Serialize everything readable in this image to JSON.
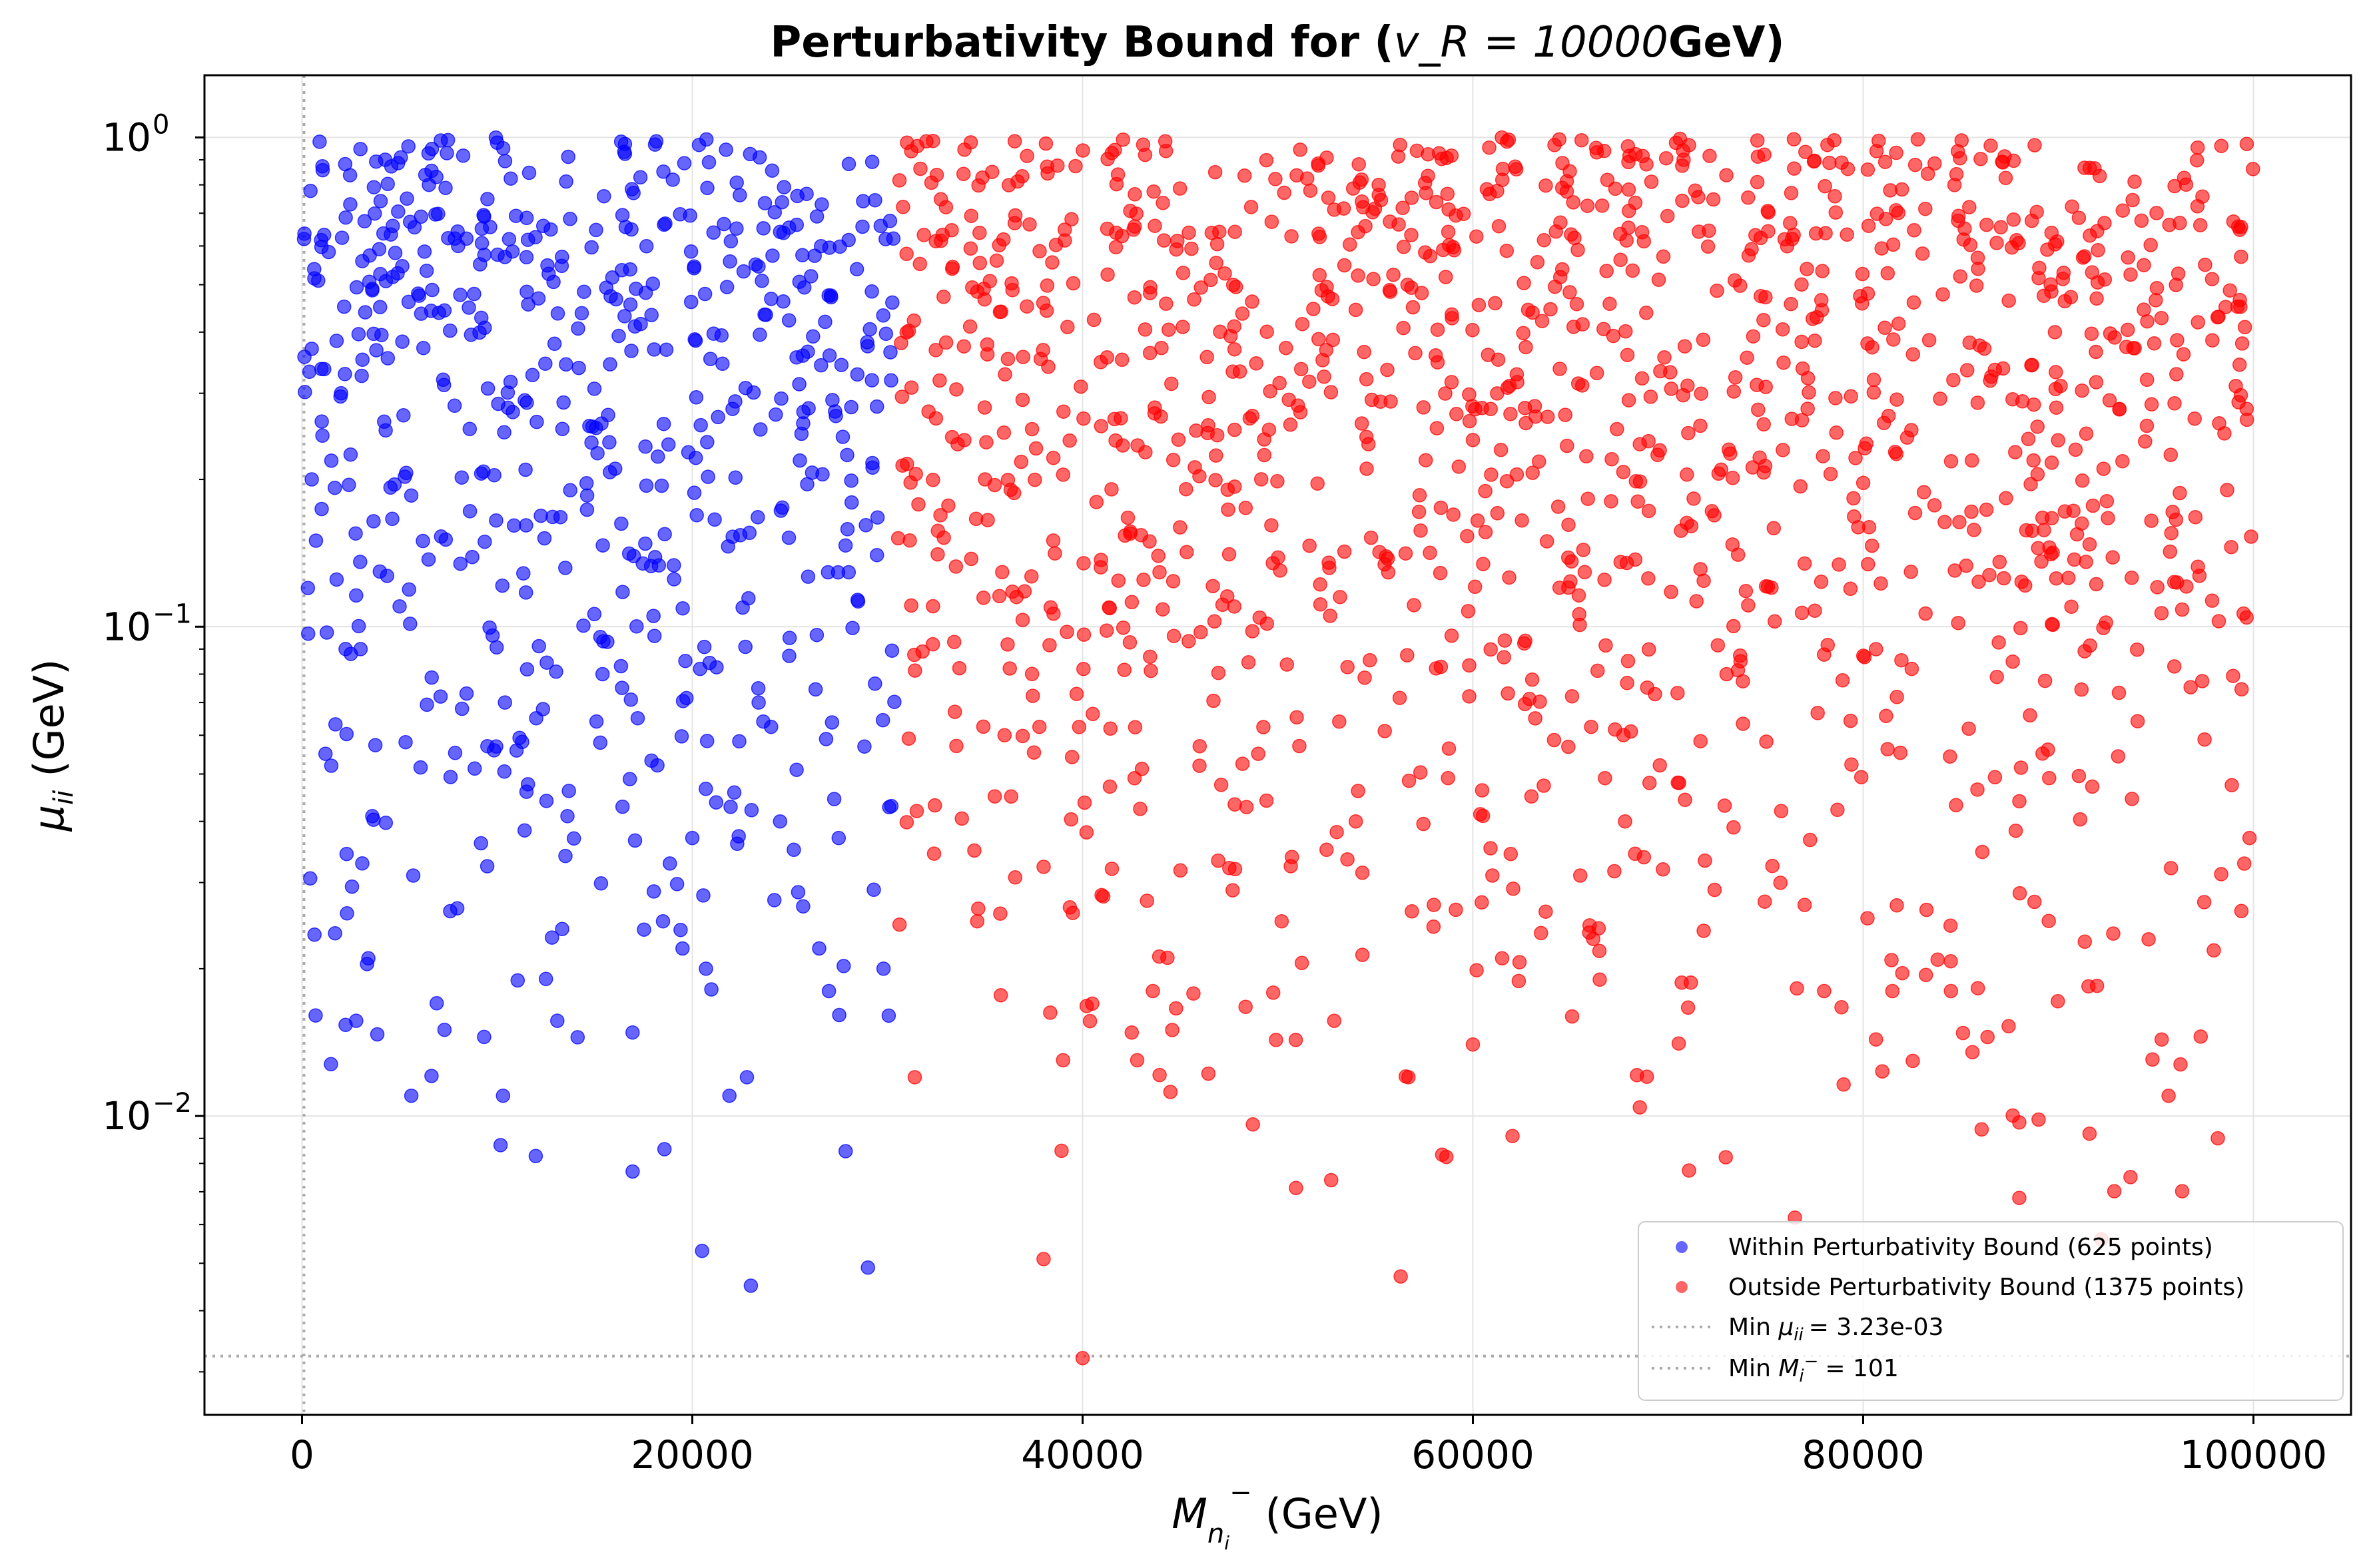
{
  "chart_data": {
    "type": "scatter",
    "title": "Perturbativity Bound for (",
    "title_math": "v_R = 10000",
    "title_suffix": "GeV)",
    "xlabel": "M",
    "xlabel_unit": "(GeV)",
    "ylabel": "μ",
    "ylabel_unit": "(GeV)",
    "x_scale": "linear",
    "y_scale": "log",
    "xlim": [
      -5000,
      105000
    ],
    "ylim": [
      0.00245,
      1.34
    ],
    "x_ticks": [
      0,
      20000,
      40000,
      60000,
      80000,
      100000
    ],
    "x_tick_labels": [
      "0",
      "20000",
      "40000",
      "60000",
      "80000",
      "100000"
    ],
    "y_ticks": [
      0.01,
      0.1,
      1
    ],
    "y_tick_labels": [
      "10",
      "10",
      "10"
    ],
    "y_tick_exponents": [
      "−2",
      "−1",
      "0"
    ],
    "grid": true,
    "legend_position": "lower-right",
    "boundary_x": 30500,
    "series": [
      {
        "name": "Within Perturbativity Bound (625 points)",
        "color": "#0000ff",
        "count": 625
      },
      {
        "name": "Outside Perturbativity Bound (1375 points)",
        "color": "#ff0000",
        "count": 1375
      }
    ],
    "reference_lines": [
      {
        "label": "Min μ_ii = 3.23e-03",
        "label_text": "= 3.23e-03",
        "axis": "y",
        "value": 0.00323,
        "color": "#aaaaaa"
      },
      {
        "label": "Min M_i^- = 101",
        "label_text": "= 101",
        "axis": "x",
        "value": 101,
        "color": "#aaaaaa"
      }
    ],
    "sample_points_blue": [
      [
        101,
        0.62
      ],
      [
        300,
        0.12
      ],
      [
        500,
        0.2
      ],
      [
        900,
        0.98
      ],
      [
        1200,
        0.055
      ],
      [
        1500,
        0.052
      ],
      [
        2000,
        0.3
      ],
      [
        2500,
        0.088
      ],
      [
        3000,
        0.09
      ],
      [
        3400,
        0.021
      ],
      [
        3600,
        0.041
      ],
      [
        4000,
        0.45
      ],
      [
        5000,
        0.11
      ],
      [
        5700,
        0.031
      ],
      [
        5600,
        0.011
      ],
      [
        6500,
        0.8
      ],
      [
        6900,
        0.017
      ],
      [
        7100,
        0.072
      ],
      [
        7300,
        0.015
      ],
      [
        8000,
        0.6
      ],
      [
        9500,
        0.057
      ],
      [
        10300,
        0.011
      ],
      [
        10400,
        0.07
      ],
      [
        11500,
        0.046
      ],
      [
        12000,
        0.065
      ],
      [
        13500,
        0.034
      ],
      [
        13600,
        0.041
      ],
      [
        15400,
        0.08
      ],
      [
        16400,
        0.075
      ],
      [
        17200,
        0.065
      ],
      [
        18500,
        0.025
      ],
      [
        19400,
        0.024
      ],
      [
        19500,
        0.022
      ],
      [
        20000,
        0.037
      ],
      [
        20500,
        0.0053
      ],
      [
        20700,
        0.02
      ],
      [
        21900,
        0.011
      ],
      [
        22300,
        0.036
      ],
      [
        22800,
        0.012
      ],
      [
        23000,
        0.0045
      ],
      [
        23400,
        0.07
      ],
      [
        24500,
        0.04
      ],
      [
        25200,
        0.035
      ],
      [
        26500,
        0.022
      ],
      [
        27000,
        0.018
      ],
      [
        27500,
        0.037
      ],
      [
        29000,
        0.0049
      ],
      [
        29300,
        0.029
      ],
      [
        29800,
        0.02
      ],
      [
        30200,
        0.043
      ]
    ],
    "sample_points_red": [
      [
        30700,
        0.38
      ],
      [
        31400,
        0.012
      ],
      [
        31500,
        0.042
      ],
      [
        31800,
        0.089
      ],
      [
        33000,
        0.72
      ],
      [
        34600,
        0.025
      ],
      [
        35000,
        0.2
      ],
      [
        35500,
        0.045
      ],
      [
        36000,
        0.06
      ],
      [
        38000,
        0.0051
      ],
      [
        38500,
        0.15
      ],
      [
        39000,
        0.013
      ],
      [
        39500,
        0.026
      ],
      [
        40000,
        0.0032
      ],
      [
        40200,
        0.038
      ],
      [
        41500,
        0.032
      ],
      [
        42800,
        0.013
      ],
      [
        43600,
        0.018
      ],
      [
        44500,
        0.0112
      ],
      [
        46000,
        0.057
      ],
      [
        49000,
        0.055
      ],
      [
        50200,
        0.025
      ],
      [
        52500,
        0.035
      ],
      [
        54000,
        0.04
      ],
      [
        56300,
        0.0047
      ],
      [
        56700,
        0.012
      ],
      [
        58000,
        0.027
      ],
      [
        60000,
        0.014
      ],
      [
        61000,
        0.031
      ],
      [
        61500,
        0.021
      ],
      [
        63000,
        0.045
      ],
      [
        65500,
        0.031
      ],
      [
        66500,
        0.019
      ],
      [
        67800,
        0.04
      ],
      [
        70500,
        0.048
      ],
      [
        73000,
        0.08
      ],
      [
        75800,
        0.042
      ],
      [
        76500,
        0.0062
      ],
      [
        77000,
        0.027
      ],
      [
        78000,
        0.018
      ],
      [
        79000,
        0.0116
      ],
      [
        81500,
        0.018
      ],
      [
        84500,
        0.018
      ],
      [
        85600,
        0.0135
      ],
      [
        88000,
        0.0097
      ],
      [
        88000,
        0.0068
      ],
      [
        91600,
        0.0092
      ],
      [
        92200,
        0.0056
      ],
      [
        93700,
        0.0075
      ],
      [
        99800,
        0.037
      ]
    ]
  }
}
